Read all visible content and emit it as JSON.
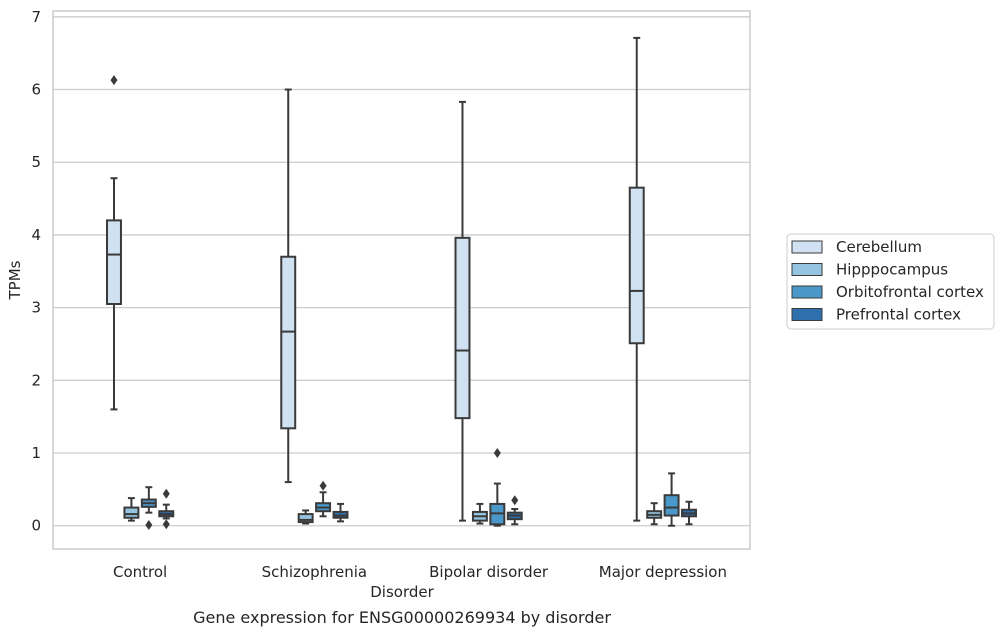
{
  "chart_data": {
    "type": "box",
    "title": "Gene expression for ENSG00000269934 by disorder",
    "xlabel": "Disorder",
    "ylabel": "TPMs",
    "ylim": [
      -0.32,
      7.08
    ],
    "yticks": [
      0,
      1,
      2,
      3,
      4,
      5,
      6,
      7
    ],
    "grid": true,
    "legend_position": "right",
    "categories": [
      "Control",
      "Schizophrenia",
      "Bipolar disorder",
      "Major depression"
    ],
    "series": [
      {
        "name": "Cerebellum",
        "color": "#d0e1f2",
        "boxes": [
          {
            "whislo": 1.6,
            "q1": 3.05,
            "med": 3.73,
            "q3": 4.2,
            "whishi": 4.78,
            "fliers": [
              6.13
            ]
          },
          {
            "whislo": 0.6,
            "q1": 1.34,
            "med": 2.67,
            "q3": 3.7,
            "whishi": 6.0,
            "fliers": []
          },
          {
            "whislo": 0.07,
            "q1": 1.48,
            "med": 2.41,
            "q3": 3.96,
            "whishi": 5.83,
            "fliers": []
          },
          {
            "whislo": 0.07,
            "q1": 2.51,
            "med": 3.23,
            "q3": 4.65,
            "whishi": 6.71,
            "fliers": []
          }
        ]
      },
      {
        "name": "Hipppocampus",
        "color": "#94c4df",
        "boxes": [
          {
            "whislo": 0.07,
            "q1": 0.11,
            "med": 0.16,
            "q3": 0.25,
            "whishi": 0.38,
            "fliers": []
          },
          {
            "whislo": 0.03,
            "q1": 0.05,
            "med": 0.08,
            "q3": 0.16,
            "whishi": 0.21,
            "fliers": []
          },
          {
            "whislo": 0.03,
            "q1": 0.07,
            "med": 0.13,
            "q3": 0.19,
            "whishi": 0.3,
            "fliers": []
          },
          {
            "whislo": 0.02,
            "q1": 0.11,
            "med": 0.15,
            "q3": 0.2,
            "whishi": 0.31,
            "fliers": []
          }
        ]
      },
      {
        "name": "Orbitofrontal cortex",
        "color": "#4a98c9",
        "boxes": [
          {
            "whislo": 0.18,
            "q1": 0.26,
            "med": 0.31,
            "q3": 0.36,
            "whishi": 0.53,
            "fliers": [
              0.01
            ]
          },
          {
            "whislo": 0.13,
            "q1": 0.2,
            "med": 0.25,
            "q3": 0.31,
            "whishi": 0.46,
            "fliers": [
              0.55
            ]
          },
          {
            "whislo": 0.0,
            "q1": 0.02,
            "med": 0.17,
            "q3": 0.3,
            "whishi": 0.58,
            "fliers": [
              1.0
            ]
          },
          {
            "whislo": 0.0,
            "q1": 0.14,
            "med": 0.25,
            "q3": 0.42,
            "whishi": 0.72,
            "fliers": []
          }
        ]
      },
      {
        "name": "Prefrontal cortex",
        "color": "#2e6fae",
        "boxes": [
          {
            "whislo": 0.1,
            "q1": 0.13,
            "med": 0.16,
            "q3": 0.2,
            "whishi": 0.29,
            "fliers": [
              0.44,
              0.02
            ]
          },
          {
            "whislo": 0.06,
            "q1": 0.11,
            "med": 0.14,
            "q3": 0.19,
            "whishi": 0.3,
            "fliers": []
          },
          {
            "whislo": 0.02,
            "q1": 0.09,
            "med": 0.14,
            "q3": 0.18,
            "whishi": 0.23,
            "fliers": [
              0.35
            ]
          },
          {
            "whislo": 0.02,
            "q1": 0.13,
            "med": 0.17,
            "q3": 0.22,
            "whishi": 0.33,
            "fliers": []
          }
        ]
      }
    ]
  }
}
